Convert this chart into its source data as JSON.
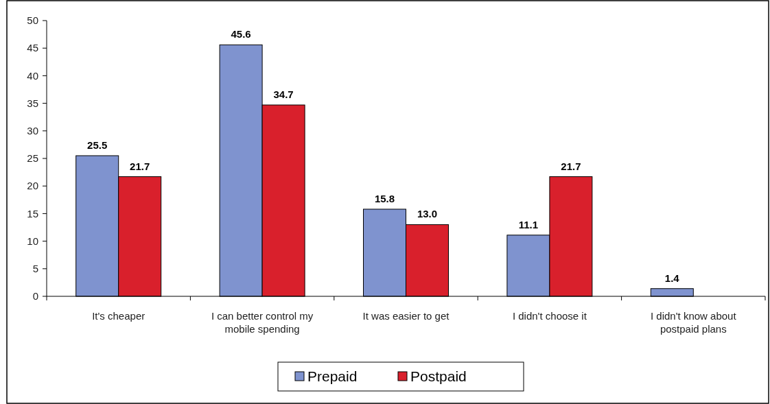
{
  "chart_data": {
    "type": "bar",
    "categories": [
      "It's cheaper",
      "I can better control my mobile spending",
      "It was easier to get",
      "I didn't choose it",
      "I didn't know about postpaid plans"
    ],
    "series": [
      {
        "name": "Prepaid",
        "color": "#7f93cf",
        "values": [
          25.5,
          45.6,
          15.8,
          11.1,
          1.4
        ],
        "value_labels": [
          "25.5",
          "45.6",
          "15.8",
          "11.1",
          "1.4"
        ]
      },
      {
        "name": "Postpaid",
        "color": "#d9202c",
        "values": [
          21.7,
          34.7,
          13.0,
          21.7,
          null
        ],
        "value_labels": [
          "21.7",
          "34.7",
          "13.0",
          "21.7",
          null
        ]
      }
    ],
    "ylim": [
      0,
      50
    ],
    "yticks": [
      0,
      5,
      10,
      15,
      20,
      25,
      30,
      35,
      40,
      45,
      50
    ],
    "grid": false,
    "legend": "bottom"
  }
}
